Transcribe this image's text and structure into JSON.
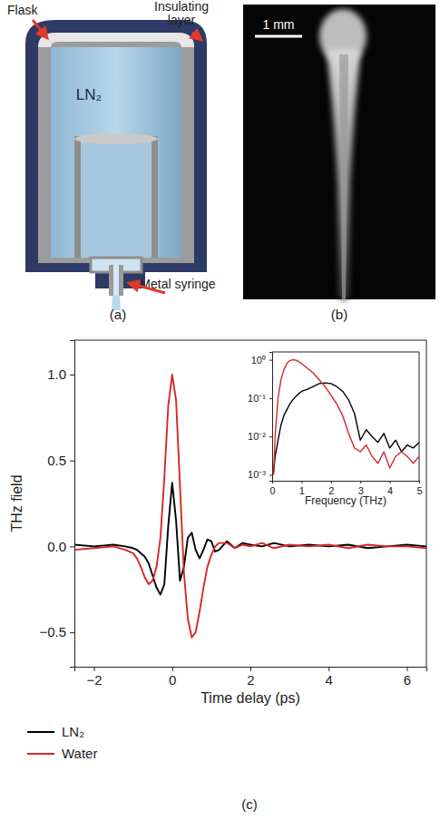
{
  "panels": {
    "a": {
      "label": "(a)",
      "annotations": {
        "flask": "Flask",
        "insulating_layer": "Insulating layer",
        "liquid": "LN₂",
        "syringe": "Metal syringe"
      }
    },
    "b": {
      "label": "(b)",
      "scale_bar": "1 mm"
    }
  },
  "chart_data": [
    {
      "type": "line",
      "panel_label": "(c)",
      "xlabel": "Time delay (ps)",
      "ylabel": "THz field",
      "x": [
        -2.5,
        -2.0,
        -1.5,
        -1.2,
        -1.0,
        -0.9,
        -0.8,
        -0.7,
        -0.6,
        -0.5,
        -0.4,
        -0.3,
        -0.2,
        -0.1,
        0,
        0.1,
        0.2,
        0.3,
        0.4,
        0.5,
        0.6,
        0.7,
        0.8,
        0.9,
        1.0,
        1.1,
        1.2,
        1.4,
        1.6,
        1.8,
        2.0,
        2.3,
        2.6,
        3.0,
        3.5,
        4.0,
        4.5,
        5.0,
        5.5,
        6.0,
        6.5
      ],
      "series": [
        {
          "name": "LN₂",
          "color": "#000000",
          "values": [
            0.01,
            0.0,
            0.01,
            0.0,
            -0.01,
            -0.02,
            -0.04,
            -0.06,
            -0.1,
            -0.17,
            -0.24,
            -0.28,
            -0.22,
            0.12,
            0.37,
            0.15,
            -0.2,
            -0.12,
            0.05,
            0.08,
            -0.02,
            -0.07,
            -0.02,
            0.04,
            0.03,
            -0.03,
            -0.02,
            0.03,
            -0.01,
            0.02,
            0.01,
            0.0,
            0.02,
            0.0,
            0.01,
            0.0,
            0.01,
            -0.01,
            0.0,
            0.01,
            0.0
          ]
        },
        {
          "name": "Water",
          "color": "#d62728",
          "values": [
            -0.02,
            -0.01,
            0.0,
            -0.02,
            -0.04,
            -0.07,
            -0.12,
            -0.18,
            -0.22,
            -0.2,
            -0.12,
            0.05,
            0.4,
            0.82,
            1.0,
            0.85,
            0.35,
            -0.15,
            -0.42,
            -0.53,
            -0.5,
            -0.38,
            -0.24,
            -0.12,
            -0.05,
            0.0,
            0.02,
            0.02,
            -0.01,
            0.01,
            0.0,
            0.02,
            -0.01,
            0.01,
            0.0,
            0.01,
            -0.01,
            0.01,
            0.0,
            0.0,
            -0.01
          ]
        }
      ],
      "xlim": [
        -2.5,
        6.5
      ],
      "ylim": [
        -0.7,
        1.2
      ],
      "xticks": [
        {
          "value": -2,
          "label": "−2"
        },
        0,
        2,
        4,
        6
      ],
      "yticks": [
        {
          "value": -0.5,
          "label": "−0.5"
        },
        {
          "value": 0,
          "label": "0.0"
        },
        {
          "value": 0.5,
          "label": "0.5"
        },
        {
          "value": 1,
          "label": "1.0"
        }
      ],
      "legend": "below"
    },
    {
      "type": "line",
      "xlabel": "Frequency (THz)",
      "log": "y",
      "x": [
        0.05,
        0.1,
        0.2,
        0.3,
        0.4,
        0.5,
        0.6,
        0.7,
        0.8,
        0.9,
        1.0,
        1.2,
        1.4,
        1.6,
        1.8,
        2.0,
        2.2,
        2.4,
        2.6,
        2.8,
        3.0,
        3.2,
        3.4,
        3.6,
        3.8,
        4.0,
        4.2,
        4.4,
        4.6,
        4.8,
        5.0
      ],
      "series": [
        {
          "color": "#000000",
          "values": [
            0.0012,
            0.003,
            0.008,
            0.02,
            0.035,
            0.05,
            0.07,
            0.09,
            0.11,
            0.13,
            0.15,
            0.17,
            0.2,
            0.24,
            0.25,
            0.24,
            0.2,
            0.15,
            0.09,
            0.04,
            0.008,
            0.015,
            0.01,
            0.007,
            0.012,
            0.005,
            0.008,
            0.004,
            0.006,
            0.005,
            0.007
          ]
        },
        {
          "color": "#d62728",
          "values": [
            0.001,
            0.01,
            0.1,
            0.3,
            0.55,
            0.8,
            0.95,
            1.0,
            0.98,
            0.9,
            0.8,
            0.6,
            0.45,
            0.3,
            0.2,
            0.12,
            0.07,
            0.035,
            0.012,
            0.005,
            0.004,
            0.006,
            0.003,
            0.002,
            0.004,
            0.0015,
            0.003,
            0.004,
            0.003,
            0.002,
            0.003
          ]
        }
      ],
      "xlim": [
        0,
        5
      ],
      "ylim": [
        0.0007,
        1.6
      ],
      "xticks": [
        0,
        1,
        2,
        3,
        4,
        5
      ],
      "yticks": [
        {
          "value": 0.001,
          "label": "10⁻³"
        },
        {
          "value": 0.01,
          "label": "10⁻²"
        },
        {
          "value": 0.1,
          "label": "10⁻¹"
        },
        {
          "value": 1,
          "label": "10⁰"
        }
      ]
    }
  ]
}
